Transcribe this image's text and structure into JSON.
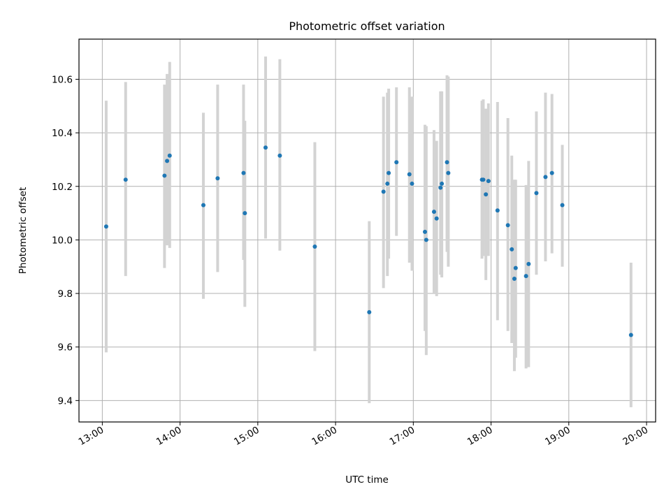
{
  "chart_data": {
    "type": "scatter",
    "title": "Photometric offset variation",
    "xlabel": "UTC time",
    "ylabel": "Photometric offset",
    "xlim": [
      "12:42",
      "20:07"
    ],
    "ylim": [
      9.32,
      10.75
    ],
    "x_ticks": [
      "13:00",
      "14:00",
      "15:00",
      "16:00",
      "17:00",
      "18:00",
      "19:00",
      "20:00"
    ],
    "y_ticks": [
      "9.4",
      "9.6",
      "9.8",
      "10.0",
      "10.2",
      "10.4",
      "10.6"
    ],
    "grid": true,
    "marker_color": "#1f77b4",
    "errorbar_color": "#d3d3d3",
    "points": [
      {
        "x": "13:03",
        "y": 10.05,
        "ylo": 9.58,
        "yhi": 10.52
      },
      {
        "x": "13:18",
        "y": 10.225,
        "ylo": 9.865,
        "yhi": 10.59
      },
      {
        "x": "13:48",
        "y": 10.24,
        "ylo": 9.895,
        "yhi": 10.58
      },
      {
        "x": "13:50",
        "y": 10.295,
        "ylo": 9.98,
        "yhi": 10.62
      },
      {
        "x": "13:52",
        "y": 10.315,
        "ylo": 9.97,
        "yhi": 10.665
      },
      {
        "x": "14:18",
        "y": 10.13,
        "ylo": 9.78,
        "yhi": 10.475
      },
      {
        "x": "14:29",
        "y": 10.23,
        "ylo": 9.88,
        "yhi": 10.58
      },
      {
        "x": "14:49",
        "y": 10.25,
        "ylo": 9.925,
        "yhi": 10.58
      },
      {
        "x": "14:50",
        "y": 10.1,
        "ylo": 9.75,
        "yhi": 10.445
      },
      {
        "x": "15:06",
        "y": 10.345,
        "ylo": 10.005,
        "yhi": 10.685
      },
      {
        "x": "15:17",
        "y": 10.315,
        "ylo": 9.96,
        "yhi": 10.675
      },
      {
        "x": "15:44",
        "y": 9.975,
        "ylo": 9.585,
        "yhi": 10.365
      },
      {
        "x": "16:26",
        "y": 9.73,
        "ylo": 9.39,
        "yhi": 10.07
      },
      {
        "x": "16:37",
        "y": 10.18,
        "ylo": 9.82,
        "yhi": 10.535
      },
      {
        "x": "16:40",
        "y": 10.21,
        "ylo": 9.865,
        "yhi": 10.55
      },
      {
        "x": "16:41",
        "y": 10.25,
        "ylo": 9.93,
        "yhi": 10.565
      },
      {
        "x": "16:47",
        "y": 10.29,
        "ylo": 10.015,
        "yhi": 10.57
      },
      {
        "x": "16:57",
        "y": 10.245,
        "ylo": 9.915,
        "yhi": 10.57
      },
      {
        "x": "16:59",
        "y": 10.21,
        "ylo": 9.885,
        "yhi": 10.535
      },
      {
        "x": "17:09",
        "y": 10.03,
        "ylo": 9.66,
        "yhi": 10.43
      },
      {
        "x": "17:10",
        "y": 10.0,
        "ylo": 9.57,
        "yhi": 10.425
      },
      {
        "x": "17:16",
        "y": 10.105,
        "ylo": 9.8,
        "yhi": 10.41
      },
      {
        "x": "17:18",
        "y": 10.08,
        "ylo": 9.79,
        "yhi": 10.37
      },
      {
        "x": "17:21",
        "y": 10.195,
        "ylo": 9.87,
        "yhi": 10.555
      },
      {
        "x": "17:22",
        "y": 10.21,
        "ylo": 9.86,
        "yhi": 10.555
      },
      {
        "x": "17:26",
        "y": 10.29,
        "ylo": 9.955,
        "yhi": 10.615
      },
      {
        "x": "17:27",
        "y": 10.25,
        "ylo": 9.9,
        "yhi": 10.61
      },
      {
        "x": "17:53",
        "y": 10.225,
        "ylo": 9.93,
        "yhi": 10.52
      },
      {
        "x": "17:54",
        "y": 10.225,
        "ylo": 9.94,
        "yhi": 10.525
      },
      {
        "x": "17:56",
        "y": 10.17,
        "ylo": 9.85,
        "yhi": 10.49
      },
      {
        "x": "17:58",
        "y": 10.22,
        "ylo": 9.94,
        "yhi": 10.51
      },
      {
        "x": "18:05",
        "y": 10.11,
        "ylo": 9.7,
        "yhi": 10.515
      },
      {
        "x": "18:13",
        "y": 10.055,
        "ylo": 9.66,
        "yhi": 10.455
      },
      {
        "x": "18:16",
        "y": 9.965,
        "ylo": 9.615,
        "yhi": 10.315
      },
      {
        "x": "18:18",
        "y": 9.855,
        "ylo": 9.51,
        "yhi": 10.225
      },
      {
        "x": "18:19",
        "y": 9.895,
        "ylo": 9.56,
        "yhi": 10.225
      },
      {
        "x": "18:27",
        "y": 9.865,
        "ylo": 9.52,
        "yhi": 10.205
      },
      {
        "x": "18:29",
        "y": 9.91,
        "ylo": 9.525,
        "yhi": 10.295
      },
      {
        "x": "18:35",
        "y": 10.175,
        "ylo": 9.87,
        "yhi": 10.48
      },
      {
        "x": "18:42",
        "y": 10.235,
        "ylo": 9.92,
        "yhi": 10.55
      },
      {
        "x": "18:47",
        "y": 10.25,
        "ylo": 9.95,
        "yhi": 10.545
      },
      {
        "x": "18:55",
        "y": 10.13,
        "ylo": 9.9,
        "yhi": 10.355
      },
      {
        "x": "19:48",
        "y": 9.645,
        "ylo": 9.375,
        "yhi": 9.915
      }
    ]
  }
}
